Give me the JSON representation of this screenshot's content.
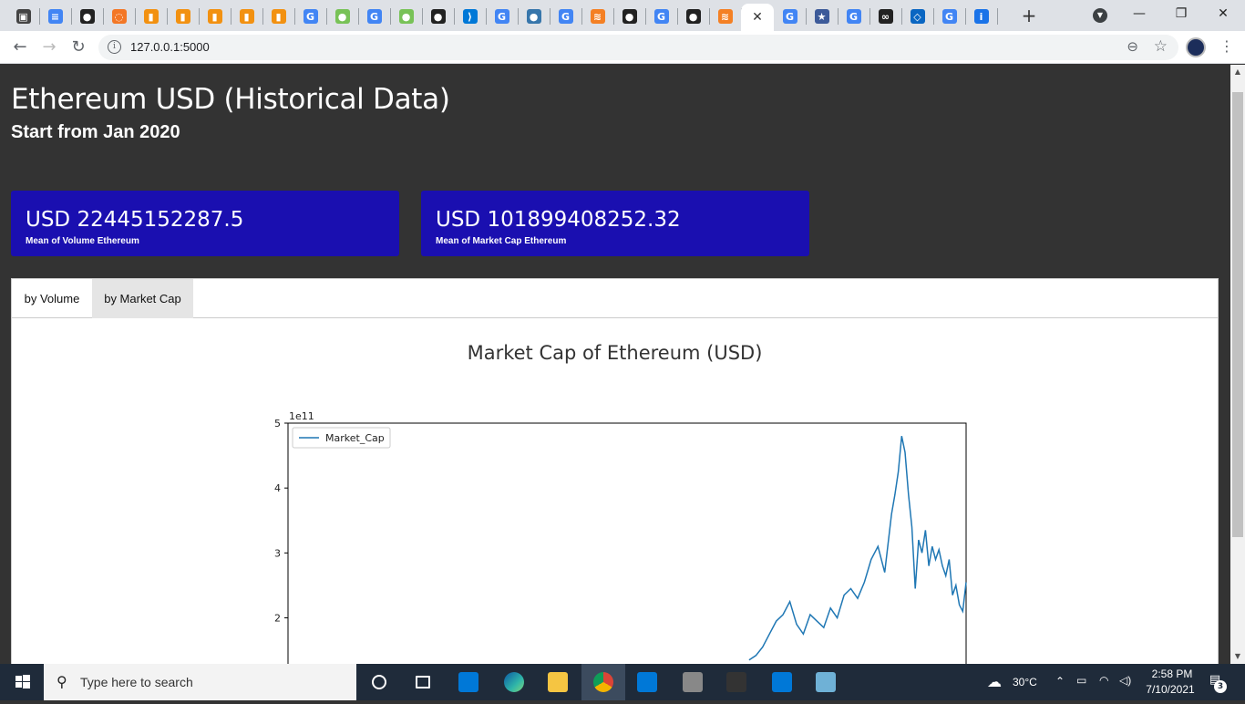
{
  "browser": {
    "tabs": [
      {
        "icon": "image-icon",
        "color": "#444"
      },
      {
        "icon": "docs-icon",
        "color": "#4285f4"
      },
      {
        "icon": "github-icon",
        "color": "#222"
      },
      {
        "icon": "jupyter-icon",
        "color": "#f37726"
      },
      {
        "icon": "book-icon",
        "color": "#f29111"
      },
      {
        "icon": "book-icon",
        "color": "#f29111"
      },
      {
        "icon": "book-icon",
        "color": "#f29111"
      },
      {
        "icon": "book-icon",
        "color": "#f29111"
      },
      {
        "icon": "book-icon",
        "color": "#f29111"
      },
      {
        "icon": "translate-icon",
        "color": "#4285f4"
      },
      {
        "icon": "android-icon",
        "color": "#78c257"
      },
      {
        "icon": "google-icon",
        "color": "#4285f4"
      },
      {
        "icon": "android-icon",
        "color": "#78c257"
      },
      {
        "icon": "github-icon",
        "color": "#222"
      },
      {
        "icon": "vscode-icon",
        "color": "#0078d7"
      },
      {
        "icon": "google-icon",
        "color": "#4285f4"
      },
      {
        "icon": "python-icon",
        "color": "#3776ab"
      },
      {
        "icon": "google-icon",
        "color": "#4285f4"
      },
      {
        "icon": "stackoverflow-icon",
        "color": "#f48024"
      },
      {
        "icon": "github-icon",
        "color": "#222"
      },
      {
        "icon": "google-icon",
        "color": "#4285f4"
      },
      {
        "icon": "github-icon",
        "color": "#222"
      },
      {
        "icon": "stackoverflow-icon",
        "color": "#f48024"
      },
      {
        "icon": "close-icon",
        "color": "#333",
        "active": true
      },
      {
        "icon": "google-icon",
        "color": "#4285f4"
      },
      {
        "icon": "star-icon",
        "color": "#3c5a99"
      },
      {
        "icon": "google-icon",
        "color": "#4285f4"
      },
      {
        "icon": "glasses-icon",
        "color": "#222"
      },
      {
        "icon": "code-icon",
        "color": "#0a66c2"
      },
      {
        "icon": "google-icon",
        "color": "#4285f4"
      },
      {
        "icon": "info-icon",
        "color": "#1a73e8"
      }
    ],
    "url": "127.0.0.1:5000"
  },
  "page": {
    "title": "Ethereum USD (Historical Data)",
    "subtitle": "Start from Jan 2020",
    "cards": [
      {
        "value": "USD 22445152287.5",
        "label": "Mean of Volume Ethereum"
      },
      {
        "value": "USD 101899408252.32",
        "label": "Mean of Market Cap Ethereum"
      }
    ],
    "tabs": [
      {
        "label": "by Volume"
      },
      {
        "label": "by Market Cap"
      }
    ],
    "chart_title": "Market Cap of Ethereum (USD)"
  },
  "chart_data": {
    "type": "line",
    "title": "Market Cap of Ethereum (USD)",
    "xlabel": "",
    "ylabel": "",
    "offset_label": "1e11",
    "yticks": [
      "2",
      "3",
      "4",
      "5"
    ],
    "ylim_visible": [
      1.35,
      5.05
    ],
    "legend": {
      "label": "Market_Cap",
      "position": "top-left"
    },
    "color": "#1f77b4",
    "series": [
      {
        "name": "Market_Cap",
        "x": [
          0.68,
          0.69,
          0.7,
          0.71,
          0.72,
          0.73,
          0.74,
          0.75,
          0.76,
          0.77,
          0.78,
          0.79,
          0.8,
          0.81,
          0.82,
          0.83,
          0.84,
          0.85,
          0.86,
          0.87,
          0.88,
          0.89,
          0.895,
          0.9,
          0.905,
          0.91,
          0.915,
          0.92,
          0.925,
          0.93,
          0.935,
          0.94,
          0.945,
          0.95,
          0.955,
          0.96,
          0.965,
          0.97,
          0.975,
          0.98,
          0.985,
          0.99,
          0.995,
          1.0
        ],
        "values": [
          1.35,
          1.42,
          1.55,
          1.75,
          1.95,
          2.05,
          2.25,
          1.9,
          1.75,
          2.05,
          1.95,
          1.85,
          2.15,
          2.0,
          2.35,
          2.45,
          2.3,
          2.55,
          2.9,
          3.1,
          2.7,
          3.6,
          3.9,
          4.25,
          4.8,
          4.55,
          3.9,
          3.4,
          2.45,
          3.2,
          3.0,
          3.35,
          2.8,
          3.1,
          2.9,
          3.05,
          2.8,
          2.65,
          2.9,
          2.35,
          2.5,
          2.2,
          2.1,
          2.55
        ]
      }
    ]
  },
  "taskbar": {
    "search_placeholder": "Type here to search",
    "temperature": "30°C",
    "time": "2:58 PM",
    "date": "7/10/2021",
    "notifications": "3",
    "apps": [
      {
        "icon": "cortana-icon",
        "color": "#ffffff"
      },
      {
        "icon": "task-view-icon",
        "color": "#ffffff"
      },
      {
        "icon": "store-icon",
        "color": "#0078d7"
      },
      {
        "icon": "edge-icon",
        "color": "#2fb5a9"
      },
      {
        "icon": "file-explorer-icon",
        "color": "#f5c542"
      },
      {
        "icon": "chrome-icon",
        "color": "#db4437",
        "active": true
      },
      {
        "icon": "mail-icon",
        "color": "#0078d7"
      },
      {
        "icon": "webcam-icon",
        "color": "#888888"
      },
      {
        "icon": "terminal-icon",
        "color": "#333333"
      },
      {
        "icon": "vscode-icon",
        "color": "#0078d7"
      },
      {
        "icon": "notes-icon",
        "color": "#6fb1d6"
      }
    ]
  }
}
